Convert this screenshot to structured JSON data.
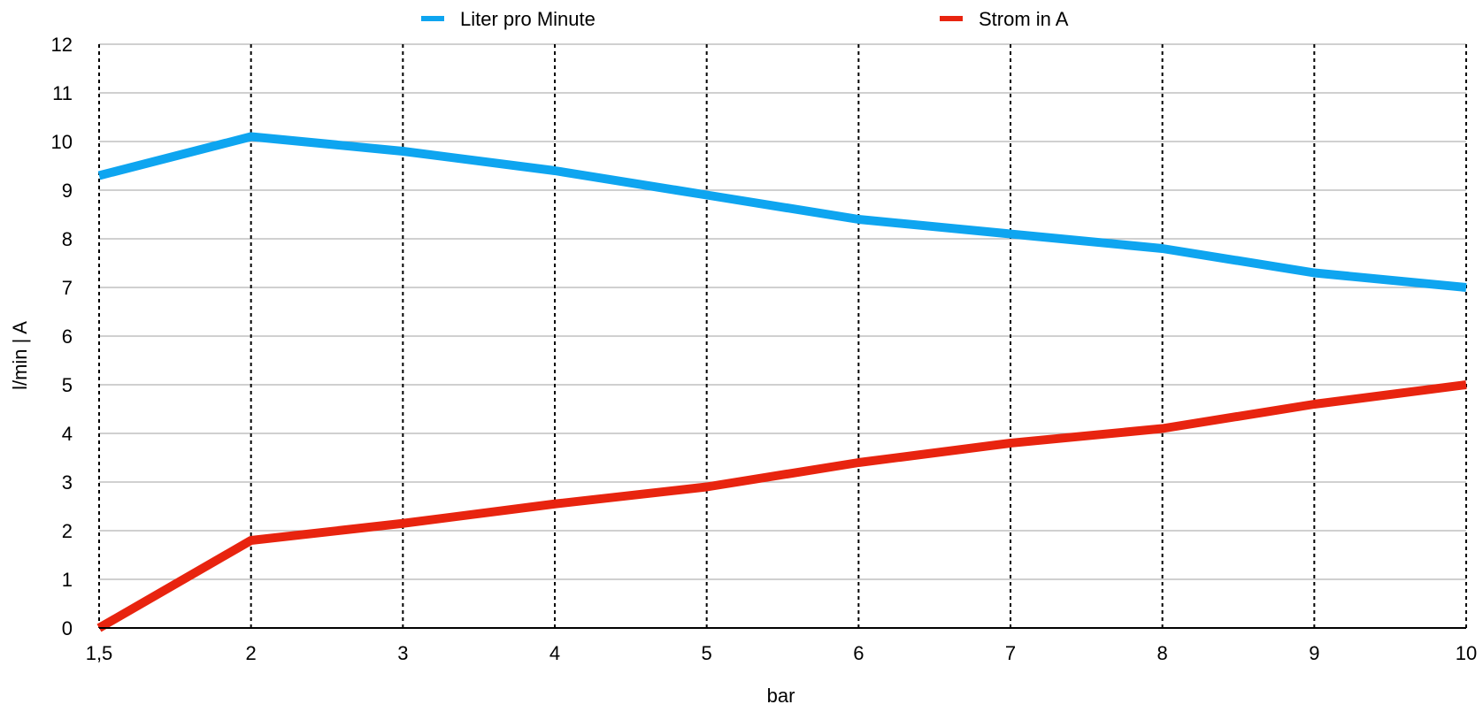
{
  "chart_data": {
    "type": "line",
    "categories": [
      "1,5",
      "2",
      "3",
      "4",
      "5",
      "6",
      "7",
      "8",
      "9",
      "10"
    ],
    "series": [
      {
        "name": "Liter pro Minute",
        "color": "#0EA5F0",
        "values": [
          9.3,
          10.1,
          9.8,
          9.4,
          8.9,
          8.4,
          8.1,
          7.8,
          7.3,
          7.0
        ]
      },
      {
        "name": "Strom in A",
        "color": "#E8240F",
        "values": [
          0.0,
          1.8,
          2.15,
          2.55,
          2.9,
          3.4,
          3.8,
          4.1,
          4.6,
          5.0
        ]
      }
    ],
    "xlabel": "bar",
    "ylabel": "l/min | A",
    "ylim": [
      0,
      12
    ],
    "yticks": [
      "0",
      "1",
      "2",
      "3",
      "4",
      "5",
      "6",
      "7",
      "8",
      "9",
      "10",
      "11",
      "12"
    ],
    "grid": "horizontal solid, vertical dotted",
    "legend_position": "top"
  }
}
